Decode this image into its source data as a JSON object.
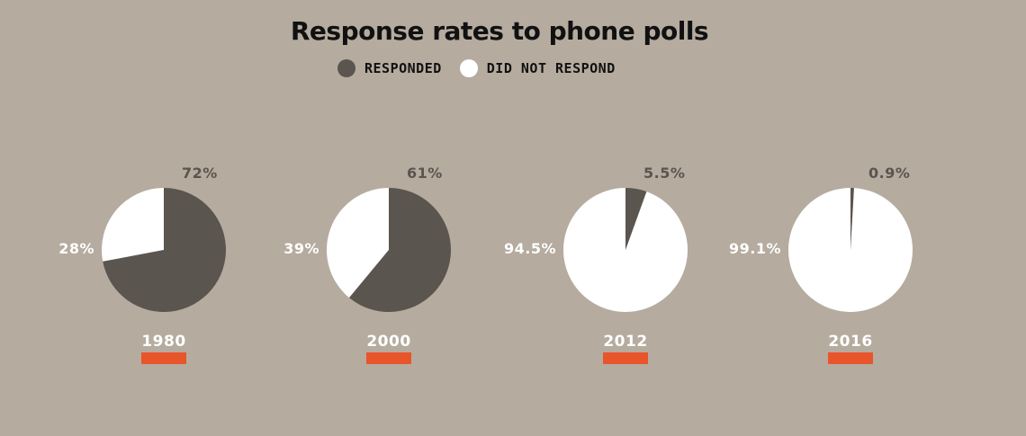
{
  "chart_data": {
    "type": "pie",
    "title": "Response rates to phone polls",
    "legend": {
      "placement": "top-center",
      "items": [
        {
          "name": "RESPONDED",
          "color": "#5b554f"
        },
        {
          "name": "DID NOT RESPOND",
          "color": "#ffffff"
        }
      ]
    },
    "pies": [
      {
        "year": "1980",
        "responded": 72,
        "did_not_respond": 28,
        "responded_label": "72%",
        "did_not_respond_label": "28%"
      },
      {
        "year": "2000",
        "responded": 61,
        "did_not_respond": 39,
        "responded_label": "61%",
        "did_not_respond_label": "39%"
      },
      {
        "year": "2012",
        "responded": 5.5,
        "did_not_respond": 94.5,
        "responded_label": "5.5%",
        "did_not_respond_label": "94.5%"
      },
      {
        "year": "2016",
        "responded": 0.9,
        "did_not_respond": 99.1,
        "responded_label": "0.9%",
        "did_not_respond_label": "99.1%"
      }
    ]
  },
  "colors": {
    "background": "#b5ab9f",
    "responded": "#5b554f",
    "did_not_respond": "#ffffff",
    "year_bar": "#e8552a",
    "responded_label": "#5b554f",
    "did_not_respond_label": "#ffffff"
  }
}
